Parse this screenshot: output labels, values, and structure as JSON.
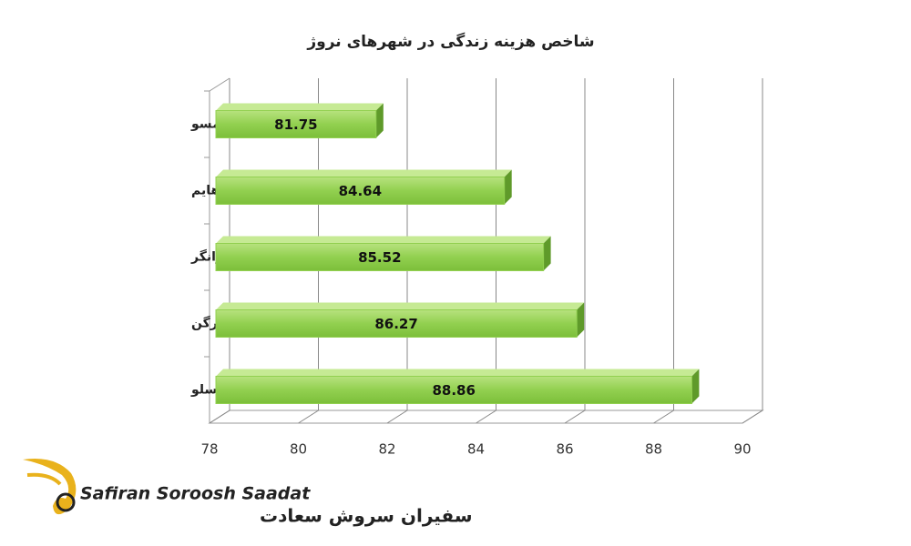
{
  "chart_data": {
    "type": "bar",
    "orientation": "horizontal",
    "title": "شاخص هزینه زندگی در شهرهای نروژ",
    "categories": [
      "ترومسو",
      "تورندهایم",
      "استاوانگر",
      "برگن",
      "اوسلو"
    ],
    "values": [
      81.75,
      84.64,
      85.52,
      86.27,
      88.86
    ],
    "color": "#92d050",
    "xlim": [
      78,
      90
    ],
    "xticks": [
      78,
      80,
      82,
      84,
      86,
      88,
      90
    ],
    "grid": true
  },
  "logo": {
    "latin": "Safiran Soroosh Saadat",
    "persian": "سفیران سروش سعادت"
  }
}
